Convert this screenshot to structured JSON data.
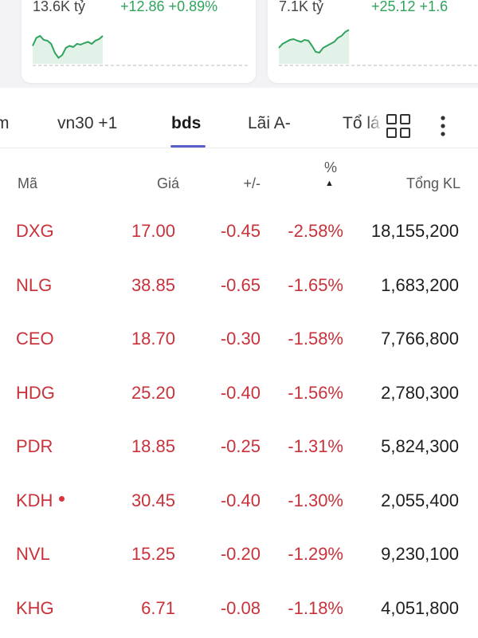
{
  "colors": {
    "up": "#2fa35c",
    "down": "#c8323a",
    "tab_accent": "#5a5fc8"
  },
  "index_cards": [
    {
      "volume": "13.6K tỷ",
      "change": "+12.86 +0.89%",
      "sparkline": [
        0.55,
        0.35,
        0.3,
        0.4,
        0.42,
        0.5,
        0.72,
        0.85,
        0.78,
        0.6,
        0.55,
        0.58,
        0.5,
        0.52,
        0.48,
        0.45,
        0.5,
        0.42,
        0.38,
        0.3
      ]
    },
    {
      "volume": "7.1K tỷ",
      "change": "+25.12 +1.6",
      "sparkline": [
        0.6,
        0.5,
        0.45,
        0.4,
        0.38,
        0.42,
        0.45,
        0.4,
        0.42,
        0.55,
        0.7,
        0.72,
        0.6,
        0.55,
        0.5,
        0.45,
        0.35,
        0.3,
        0.2,
        0.15
      ]
    }
  ],
  "tabs": [
    {
      "label": "m",
      "active": false
    },
    {
      "label": "vn30 +1",
      "active": false
    },
    {
      "label": "bds",
      "active": true
    },
    {
      "label": "Lãi A-",
      "active": false
    },
    {
      "label": "Tổ lá",
      "active": false
    }
  ],
  "icons": {
    "grid": "grid-icon",
    "more": "more-vertical-icon",
    "sort": "sort-up-arrow-icon"
  },
  "table": {
    "headers": {
      "symbol": "Mã",
      "price": "Giá",
      "change": "+/-",
      "percent": "%",
      "volume": "Tổng KL"
    },
    "rows": [
      {
        "symbol": "DXG",
        "price": "17.00",
        "change": "-0.45",
        "percent": "-2.58%",
        "volume": "18,155,200",
        "dot": false
      },
      {
        "symbol": "NLG",
        "price": "38.85",
        "change": "-0.65",
        "percent": "-1.65%",
        "volume": "1,683,200",
        "dot": false
      },
      {
        "symbol": "CEO",
        "price": "18.70",
        "change": "-0.30",
        "percent": "-1.58%",
        "volume": "7,766,800",
        "dot": false
      },
      {
        "symbol": "HDG",
        "price": "25.20",
        "change": "-0.40",
        "percent": "-1.56%",
        "volume": "2,780,300",
        "dot": false
      },
      {
        "symbol": "PDR",
        "price": "18.85",
        "change": "-0.25",
        "percent": "-1.31%",
        "volume": "5,824,300",
        "dot": false
      },
      {
        "symbol": "KDH",
        "price": "30.45",
        "change": "-0.40",
        "percent": "-1.30%",
        "volume": "2,055,400",
        "dot": true
      },
      {
        "symbol": "NVL",
        "price": "15.25",
        "change": "-0.20",
        "percent": "-1.29%",
        "volume": "9,230,100",
        "dot": false
      },
      {
        "symbol": "KHG",
        "price": "6.71",
        "change": "-0.08",
        "percent": "-1.18%",
        "volume": "4,051,800",
        "dot": false
      }
    ]
  }
}
